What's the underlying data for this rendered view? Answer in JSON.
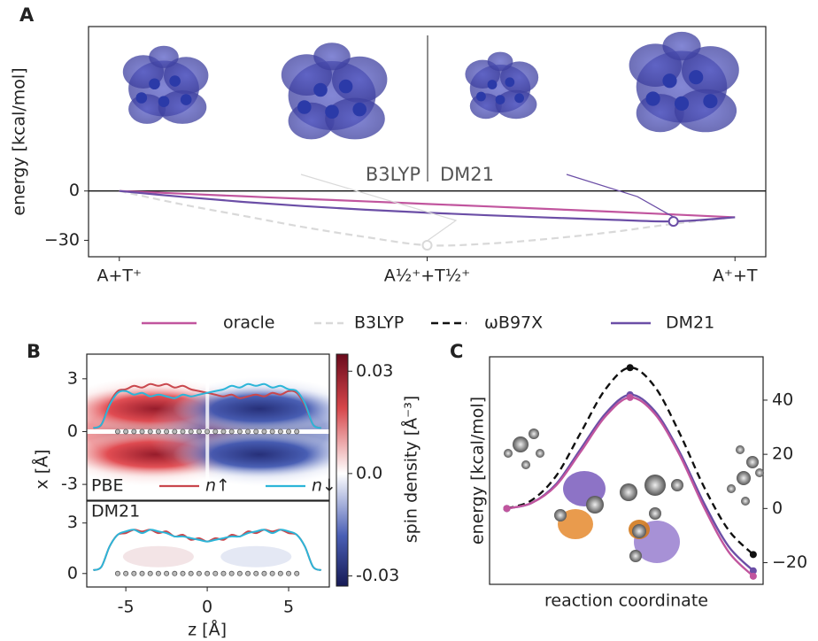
{
  "legend": [
    {
      "name": "oracle",
      "color": "#c1559e",
      "dashed": false
    },
    {
      "name": "B3LYP",
      "color": "#d9d9d9",
      "dashed": true
    },
    {
      "name": "ωB97X",
      "color": "#111111",
      "dashed": true
    },
    {
      "name": "DM21",
      "color": "#6b4ea6",
      "dashed": false
    }
  ],
  "chart_data": [
    {
      "label": "A",
      "type": "line",
      "ylabel": "energy [kcal/mol]",
      "x": [
        0,
        0.1,
        0.2,
        0.3,
        0.4,
        0.5,
        0.6,
        0.7,
        0.8,
        0.9,
        1
      ],
      "xlim": [
        -0.05,
        1.05
      ],
      "xticks": [
        {
          "value": 0,
          "label": "A+T⁺"
        },
        {
          "value": 0.5,
          "label": "A½⁺+T½⁺"
        },
        {
          "value": 1,
          "label": "A⁺+T"
        }
      ],
      "ylim": [
        -40,
        100
      ],
      "yticks": [
        0,
        {
          "value": -30,
          "label": "−30"
        }
      ],
      "annotations": [
        "B3LYP",
        "DM21"
      ],
      "series": [
        {
          "name": "oracle",
          "color": "#c1559e",
          "dashed": false,
          "values": [
            0,
            -1.6,
            -3.2,
            -4.8,
            -6.3,
            -7.9,
            -9.4,
            -11,
            -12.6,
            -14.3,
            -16
          ]
        },
        {
          "name": "B3LYP",
          "color": "#d9d9d9",
          "dashed": true,
          "values": [
            0,
            -8,
            -15,
            -22,
            -28,
            -33,
            -32,
            -29,
            -25,
            -20,
            -16
          ]
        },
        {
          "name": "DM21",
          "color": "#6b4ea6",
          "dashed": false,
          "values": [
            0,
            -3.5,
            -6.6,
            -9.2,
            -11.4,
            -13.2,
            -14.8,
            -16.2,
            -17.5,
            -18.5,
            -16
          ]
        }
      ]
    },
    {
      "label": "B",
      "type": "density",
      "xlabel": "z [Å]",
      "ylabel": "x [Å]",
      "xlim": [
        -7.4,
        7.5
      ],
      "xticks": [
        -5,
        0,
        5
      ],
      "x": [
        -7,
        -6.5,
        -6,
        -5.5,
        -5,
        -4.5,
        -4,
        -3.5,
        -3,
        -2.5,
        -2,
        -1.5,
        -1,
        -0.5,
        0,
        0.5,
        1,
        1.5,
        2,
        2.5,
        3,
        3.5,
        4,
        4.5,
        5,
        5.5,
        6,
        6.5,
        7
      ],
      "atoms": [
        -5.5,
        -5,
        -4.5,
        -4,
        -3.5,
        -3,
        -2.5,
        -2,
        -1.5,
        -1,
        -0.5,
        0,
        0.5,
        1,
        1.5,
        2,
        2.5,
        3,
        3.5,
        4,
        4.5,
        5,
        5.5
      ],
      "colorbar": {
        "label": "spin density [Å⁻³]",
        "lim": [
          -0.033,
          0.035
        ],
        "ticks": [
          0.03,
          {
            "value": 0,
            "label": "0.0"
          },
          -0.03
        ]
      },
      "panels": [
        {
          "title": "PBE",
          "ylim": [
            -3.9,
            4.4
          ],
          "yticks": [
            3,
            0,
            -3
          ],
          "series": [
            {
              "name": "n↑",
              "color": "#c9474d",
              "values": [
                0.2,
                0.4,
                1.6,
                2.3,
                2.4,
                2.6,
                2.5,
                2.7,
                2.6,
                2.7,
                2.5,
                2.6,
                2.4,
                2.3,
                2.2,
                2.1,
                2.0,
                2.1,
                1.9,
                2.0,
                2.1,
                2.0,
                2.2,
                2.1,
                2.3,
                2.2,
                1.5,
                0.4,
                0.2
              ]
            },
            {
              "name": "n↓",
              "color": "#2cb5d8",
              "values": [
                0.2,
                0.4,
                1.5,
                2.2,
                2.3,
                2.1,
                2.2,
                2.0,
                2.1,
                2.0,
                1.9,
                2.1,
                2.0,
                2.1,
                2.2,
                2.3,
                2.4,
                2.6,
                2.5,
                2.7,
                2.6,
                2.7,
                2.5,
                2.6,
                2.4,
                2.3,
                1.6,
                0.4,
                0.2
              ]
            }
          ]
        },
        {
          "title": "DM21",
          "ylim": [
            -0.8,
            4.3
          ],
          "yticks": [
            3,
            0
          ],
          "series": [
            {
              "name": "n↑",
              "color": "#c9474d",
              "values": [
                0.2,
                0.4,
                1.6,
                2.3,
                2.4,
                2.6,
                2.5,
                2.6,
                2.4,
                2.5,
                2.2,
                2.3,
                2.0,
                2.1,
                1.9,
                2.1,
                2.0,
                2.3,
                2.2,
                2.5,
                2.4,
                2.6,
                2.5,
                2.6,
                2.4,
                2.3,
                1.6,
                0.4,
                0.2
              ]
            },
            {
              "name": "n↓",
              "color": "#2cb5d8",
              "values": [
                0.2,
                0.4,
                1.6,
                2.3,
                2.5,
                2.6,
                2.4,
                2.6,
                2.5,
                2.4,
                2.2,
                2.2,
                2.1,
                2.0,
                1.9,
                2.0,
                2.1,
                2.2,
                2.2,
                2.4,
                2.5,
                2.6,
                2.4,
                2.6,
                2.5,
                2.3,
                1.6,
                0.4,
                0.2
              ]
            }
          ]
        }
      ]
    },
    {
      "label": "C",
      "type": "line",
      "ylabel": "energy [kcal/mol]",
      "xlabel": "reaction coordinate",
      "x": [
        0,
        0.1,
        0.2,
        0.3,
        0.4,
        0.5,
        0.6,
        0.7,
        0.8,
        0.9,
        1
      ],
      "xlim": [
        -0.07,
        1.04
      ],
      "ylim": [
        -28,
        56
      ],
      "yticks": [
        40,
        20,
        0,
        {
          "value": -20,
          "label": "−20"
        }
      ],
      "series": [
        {
          "name": "ωB97X",
          "color": "#111111",
          "dashed": true,
          "values": [
            0,
            3,
            12,
            28,
            44,
            52,
            45,
            28,
            8,
            -8,
            -17
          ]
        },
        {
          "name": "DM21",
          "color": "#6b4ea6",
          "dashed": false,
          "values": [
            0,
            2,
            9,
            22,
            35,
            42,
            36,
            21,
            2,
            -14,
            -23
          ]
        },
        {
          "name": "oracle",
          "color": "#c1559e",
          "dashed": false,
          "values": [
            0,
            2,
            8.5,
            21,
            34,
            41,
            35,
            20,
            0.5,
            -16,
            -25
          ]
        }
      ]
    }
  ]
}
